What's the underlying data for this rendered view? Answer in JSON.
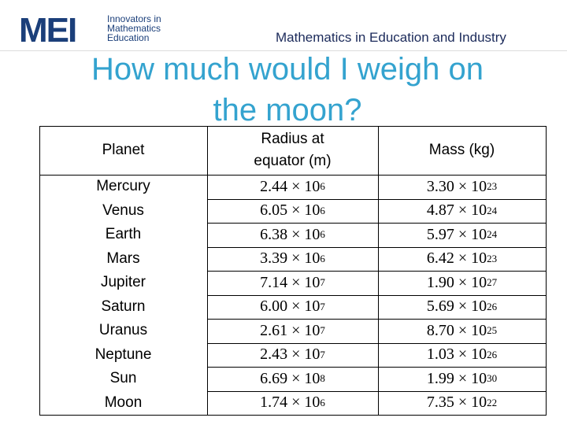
{
  "header": {
    "logo": "MEI",
    "logo_lines": [
      "Innovators in",
      "Mathematics",
      "Education"
    ],
    "tagline": "Mathematics in Education and Industry"
  },
  "title": "How much would I weigh on the moon?",
  "table": {
    "columns": [
      "Planet",
      "Radius at equator (m)",
      "Mass (kg)"
    ],
    "rows": [
      [
        "Mercury",
        {
          "mantissa": "2.44 × 10",
          "exponent": "6"
        },
        {
          "mantissa": "3.30 × 10",
          "exponent": "23"
        }
      ],
      [
        "Venus",
        {
          "mantissa": "6.05 × 10",
          "exponent": "6"
        },
        {
          "mantissa": "4.87 × 10",
          "exponent": "24"
        }
      ],
      [
        "Earth",
        {
          "mantissa": "6.38 × 10",
          "exponent": "6"
        },
        {
          "mantissa": "5.97 × 10",
          "exponent": "24"
        }
      ],
      [
        "Mars",
        {
          "mantissa": "3.39 × 10",
          "exponent": "6"
        },
        {
          "mantissa": "6.42 × 10",
          "exponent": "23"
        }
      ],
      [
        "Jupiter",
        {
          "mantissa": "7.14 × 10",
          "exponent": "7"
        },
        {
          "mantissa": "1.90 × 10",
          "exponent": "27"
        }
      ],
      [
        "Saturn",
        {
          "mantissa": "6.00 × 10",
          "exponent": "7"
        },
        {
          "mantissa": "5.69 × 10",
          "exponent": "26"
        }
      ],
      [
        "Uranus",
        {
          "mantissa": "2.61 × 10",
          "exponent": "7"
        },
        {
          "mantissa": "8.70 × 10",
          "exponent": "25"
        }
      ],
      [
        "Neptune",
        {
          "mantissa": "2.43 × 10",
          "exponent": "7"
        },
        {
          "mantissa": "1.03 × 10",
          "exponent": "26"
        }
      ],
      [
        "Sun",
        {
          "mantissa": "6.69 × 10",
          "exponent": "8"
        },
        {
          "mantissa": "1.99 × 10",
          "exponent": "30"
        }
      ],
      [
        "Moon",
        {
          "mantissa": "1.74 × 10",
          "exponent": "6"
        },
        {
          "mantissa": "7.35 × 10",
          "exponent": "22"
        }
      ]
    ]
  }
}
